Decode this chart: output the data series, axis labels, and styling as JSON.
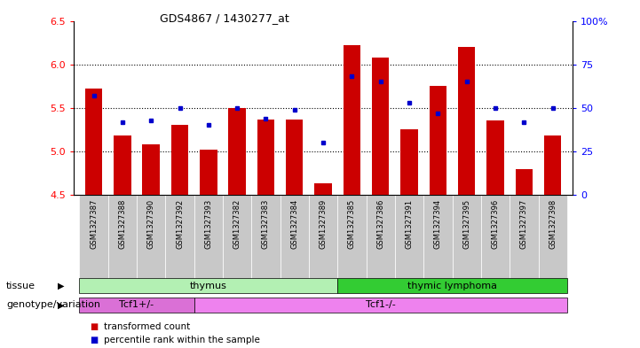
{
  "title": "GDS4867 / 1430277_at",
  "samples": [
    "GSM1327387",
    "GSM1327388",
    "GSM1327390",
    "GSM1327392",
    "GSM1327393",
    "GSM1327382",
    "GSM1327383",
    "GSM1327384",
    "GSM1327389",
    "GSM1327385",
    "GSM1327386",
    "GSM1327391",
    "GSM1327394",
    "GSM1327395",
    "GSM1327396",
    "GSM1327397",
    "GSM1327398"
  ],
  "bar_values": [
    5.72,
    5.18,
    5.08,
    5.3,
    5.02,
    5.5,
    5.37,
    5.37,
    4.63,
    6.22,
    6.08,
    5.25,
    5.75,
    6.2,
    5.36,
    4.8,
    5.18
  ],
  "dot_values": [
    57,
    42,
    43,
    50,
    40,
    50,
    44,
    49,
    30,
    68,
    65,
    53,
    47,
    65,
    50,
    42,
    50
  ],
  "bar_bottom": 4.5,
  "ylim": [
    4.5,
    6.5
  ],
  "y2lim": [
    0,
    100
  ],
  "yticks": [
    4.5,
    5.0,
    5.5,
    6.0,
    6.5
  ],
  "y2ticks": [
    0,
    25,
    50,
    75,
    100
  ],
  "bar_color": "#cc0000",
  "dot_color": "#0000cc",
  "bg_color": "#ffffff",
  "grid_vals": [
    5.0,
    5.5,
    6.0
  ],
  "tissue_groups": [
    {
      "label": "thymus",
      "start": 0,
      "end": 9,
      "color": "#b3f0b3"
    },
    {
      "label": "thymic lymphoma",
      "start": 9,
      "end": 17,
      "color": "#33cc33"
    }
  ],
  "genotype_groups": [
    {
      "label": "Tcf1+/-",
      "start": 0,
      "end": 4,
      "color": "#da70d6"
    },
    {
      "label": "Tcf1-/-",
      "start": 4,
      "end": 17,
      "color": "#ee82ee"
    }
  ],
  "tissue_label": "tissue",
  "genotype_label": "genotype/variation",
  "legend_items": [
    {
      "color": "#cc0000",
      "label": "transformed count"
    },
    {
      "color": "#0000cc",
      "label": "percentile rank within the sample"
    }
  ],
  "xtick_bg": "#c8c8c8"
}
